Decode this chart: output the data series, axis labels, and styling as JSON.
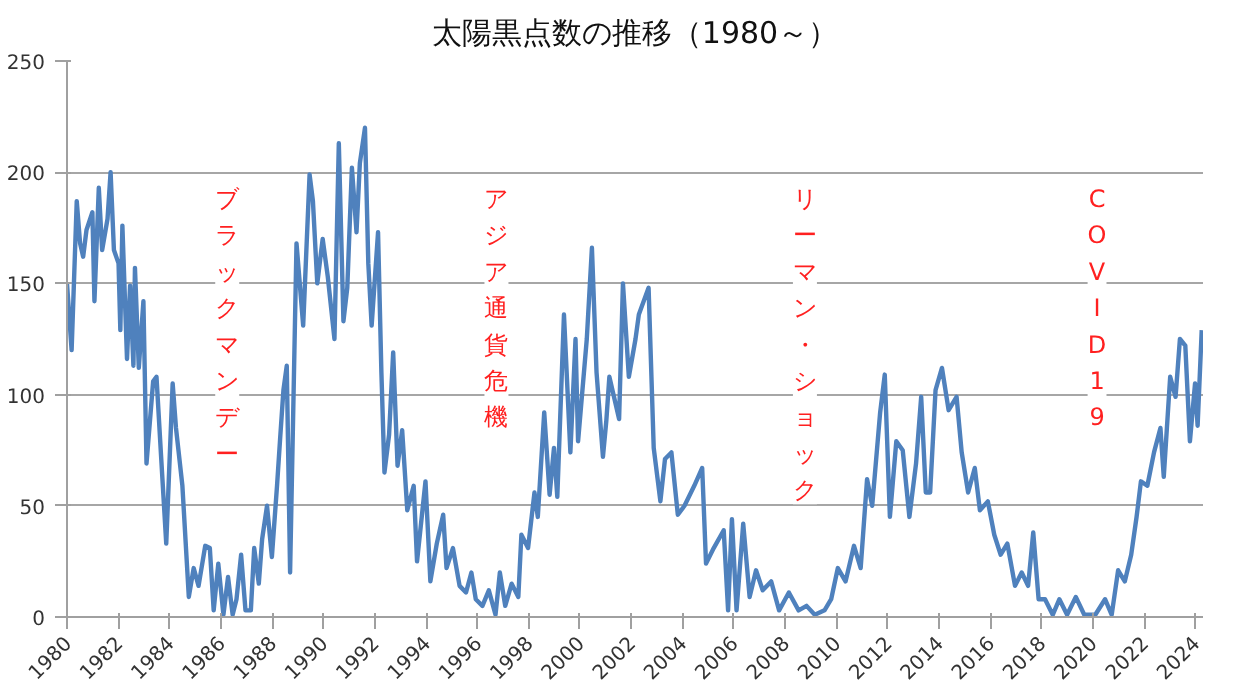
{
  "chart_data": {
    "type": "line",
    "title": "太陽黒点数の推移（1980～）",
    "xlim": [
      1980,
      2024.3
    ],
    "xticks": [
      1980,
      1982,
      1984,
      1986,
      1988,
      1990,
      1992,
      1994,
      1996,
      1998,
      2000,
      2002,
      2004,
      2006,
      2008,
      2010,
      2012,
      2014,
      2016,
      2018,
      2020,
      2022,
      2024
    ],
    "ylim": [
      0,
      250
    ],
    "yticks": [
      0,
      50,
      100,
      150,
      200,
      250
    ],
    "grid": "y",
    "marker": "none",
    "line_style": "solid",
    "series": [
      {
        "color": "#4f81bd",
        "x": [
          1980.0,
          1980.18,
          1980.38,
          1980.51,
          1980.63,
          1980.76,
          1980.99,
          1981.07,
          1981.24,
          1981.37,
          1981.58,
          1981.7,
          1981.83,
          1982.01,
          1982.08,
          1982.16,
          1982.34,
          1982.46,
          1982.59,
          1982.65,
          1982.8,
          1982.98,
          1983.1,
          1983.36,
          1983.49,
          1983.66,
          1983.87,
          1984.12,
          1984.25,
          1984.5,
          1984.75,
          1984.94,
          1985.13,
          1985.39,
          1985.57,
          1985.72,
          1985.9,
          1986.1,
          1986.28,
          1986.46,
          1986.61,
          1986.79,
          1986.96,
          1987.17,
          1987.3,
          1987.48,
          1987.61,
          1987.8,
          1987.99,
          1988.19,
          1988.31,
          1988.44,
          1988.57,
          1988.7,
          1988.95,
          1989.21,
          1989.46,
          1989.59,
          1989.76,
          1989.97,
          1990.17,
          1990.43,
          1990.6,
          1990.78,
          1990.93,
          1991.11,
          1991.29,
          1991.42,
          1991.62,
          1991.75,
          1991.88,
          1992.13,
          1992.26,
          1992.38,
          1992.56,
          1992.72,
          1992.89,
          1993.07,
          1993.27,
          1993.52,
          1993.65,
          1993.98,
          1994.17,
          1994.42,
          1994.67,
          1994.8,
          1995.05,
          1995.31,
          1995.56,
          1995.77,
          1995.94,
          1996.2,
          1996.45,
          1996.71,
          1996.88,
          1997.09,
          1997.34,
          1997.6,
          1997.72,
          1997.98,
          1998.23,
          1998.36,
          1998.61,
          1998.82,
          1998.99,
          1999.12,
          1999.38,
          1999.63,
          1999.83,
          1999.93,
          2000.27,
          2000.47,
          2000.65,
          2000.9,
          2001.03,
          2001.15,
          2001.53,
          2001.68,
          2001.91,
          2002.17,
          2002.3,
          2002.68,
          2002.88,
          2003.14,
          2003.32,
          2003.57,
          2003.82,
          2004.08,
          2004.46,
          2004.77,
          2004.92,
          2005.22,
          2005.61,
          2005.78,
          2005.93,
          2006.11,
          2006.37,
          2006.62,
          2006.87,
          2007.13,
          2007.46,
          2007.77,
          2008.15,
          2008.53,
          2008.84,
          2009.16,
          2009.54,
          2009.8,
          2010.06,
          2010.36,
          2010.69,
          2010.95,
          2011.2,
          2011.4,
          2011.71,
          2011.89,
          2012.09,
          2012.34,
          2012.59,
          2012.85,
          2013.11,
          2013.31,
          2013.49,
          2013.66,
          2013.87,
          2014.12,
          2014.38,
          2014.69,
          2014.89,
          2015.14,
          2015.4,
          2015.6,
          2015.91,
          2016.16,
          2016.41,
          2016.67,
          2016.97,
          2017.23,
          2017.48,
          2017.68,
          2017.89,
          2018.14,
          2018.44,
          2018.7,
          2019.0,
          2019.34,
          2019.67,
          2020.1,
          2020.48,
          2020.74,
          2020.99,
          2021.25,
          2021.5,
          2021.71,
          2021.88,
          2022.13,
          2022.39,
          2022.64,
          2022.77,
          2023.02,
          2023.23,
          2023.4,
          2023.61,
          2023.79,
          2023.99,
          2024.09,
          2024.25
        ],
        "values": [
          150,
          120,
          187,
          168,
          162,
          174,
          182,
          142,
          193,
          165,
          179,
          200,
          165,
          159,
          129,
          176,
          116,
          149,
          113,
          157,
          112,
          142,
          69,
          106,
          108,
          74,
          33,
          105,
          85,
          59,
          9,
          22,
          14,
          32,
          31,
          3,
          24,
          1,
          18,
          1,
          8,
          28,
          3,
          3,
          31,
          15,
          35,
          50,
          27,
          59,
          80,
          102,
          113,
          20,
          168,
          131,
          199,
          187,
          150,
          170,
          153,
          125,
          213,
          133,
          148,
          202,
          173,
          204,
          220,
          159,
          131,
          173,
          110,
          65,
          82,
          119,
          68,
          84,
          48,
          59,
          25,
          61,
          16,
          33,
          46,
          22,
          31,
          14,
          11,
          20,
          8,
          5,
          12,
          1,
          20,
          5,
          15,
          9,
          37,
          31,
          56,
          45,
          92,
          55,
          76,
          54,
          136,
          74,
          125,
          79,
          125,
          166,
          110,
          72,
          88,
          108,
          89,
          150,
          108,
          125,
          136,
          148,
          76,
          52,
          71,
          74,
          46,
          50,
          59,
          67,
          24,
          31,
          39,
          3,
          44,
          3,
          42,
          9,
          21,
          12,
          16,
          3,
          11,
          3,
          5,
          1,
          3,
          8,
          22,
          16,
          32,
          22,
          62,
          50,
          92,
          109,
          45,
          79,
          75,
          45,
          69,
          99,
          56,
          56,
          102,
          112,
          93,
          99,
          74,
          56,
          67,
          48,
          52,
          37,
          28,
          33,
          14,
          20,
          14,
          38,
          8,
          8,
          1,
          8,
          1,
          9,
          1,
          1,
          8,
          1,
          21,
          16,
          28,
          45,
          61,
          59,
          74,
          85,
          63,
          108,
          99,
          125,
          122,
          79,
          105,
          86,
          129
        ]
      }
    ],
    "annotations": [
      "ブラックマンデー",
      "アジア通貨危機",
      "リーマン・ショック",
      "COVID 19"
    ]
  }
}
